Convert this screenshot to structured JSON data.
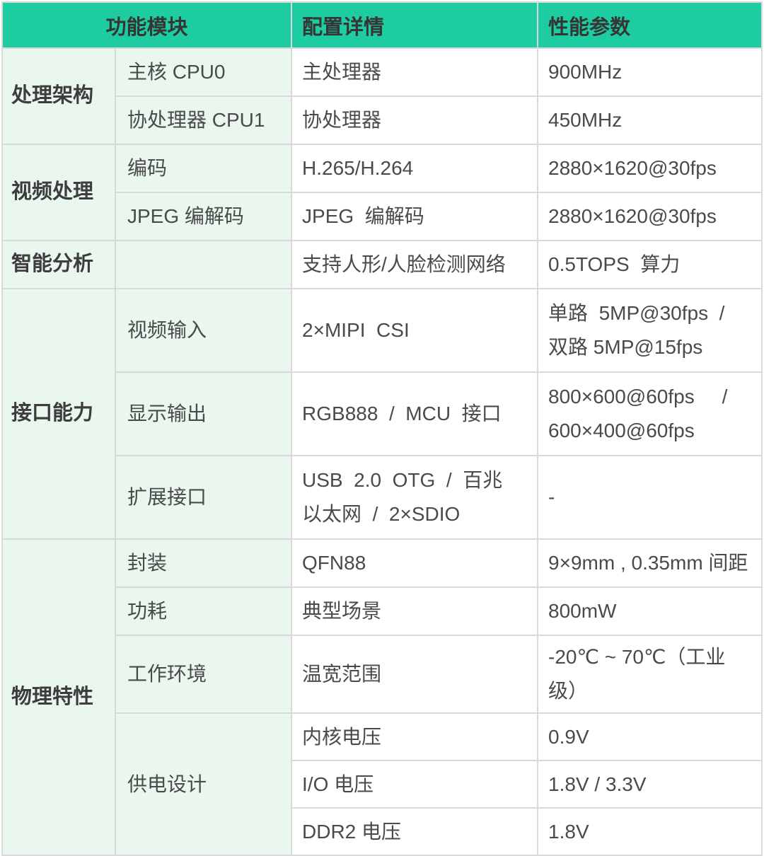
{
  "colors": {
    "header_bg": "#1dcca0",
    "category_bg": "#e9f7ef",
    "cell_bg": "#ffffff",
    "border": "#d9d9d9",
    "header_text": "#353535",
    "body_text": "#4a4a4a"
  },
  "table": {
    "header": {
      "module": "功能模块",
      "config": "配置详情",
      "perf": "性能参数"
    },
    "groups": [
      {
        "name": "处理架构",
        "rows": [
          {
            "item": "主核 CPU0",
            "config": "主处理器",
            "perf": "900MHz"
          },
          {
            "item": "协处理器 CPU1",
            "config": "协处理器",
            "perf": "450MHz"
          }
        ]
      },
      {
        "name": "视频处理",
        "rows": [
          {
            "item": "编码",
            "config": "H.265/H.264",
            "perf": "2880×1620@30fps"
          },
          {
            "item": "JPEG 编解码",
            "config": "JPEG  编解码",
            "perf": "2880×1620@30fps"
          }
        ]
      },
      {
        "name": "智能分析",
        "rows": [
          {
            "item": "",
            "config": "支持人形/人脸检测网络",
            "perf": "0.5TOPS  算力"
          }
        ]
      },
      {
        "name": "接口能力",
        "rows": [
          {
            "item": "视频输入",
            "config": "2×MIPI  CSI",
            "perf": "单路  5MP@30fps  /\n双路 5MP@15fps"
          },
          {
            "item": "显示输出",
            "config": "RGB888  /  MCU  接口",
            "perf": "800×600@60fps     /\n600×400@60fps"
          },
          {
            "item": "扩展接口",
            "config": "USB  2.0  OTG  /  百兆\n以太网  /  2×SDIO",
            "perf": "-"
          }
        ]
      },
      {
        "name": "物理特性",
        "rows": [
          {
            "item": "封装",
            "config": "QFN88",
            "perf": "9×9mm , 0.35mm 间距"
          },
          {
            "item": "功耗",
            "config": "典型场景",
            "perf": "800mW"
          },
          {
            "item": "工作环境",
            "config": "温宽范围",
            "perf": "-20℃ ~ 70℃（工业级）"
          },
          {
            "item": "供电设计",
            "config": "内核电压",
            "perf": "0.9V"
          },
          {
            "item": "",
            "config": "I/O 电压",
            "perf": "1.8V / 3.3V"
          },
          {
            "item": "",
            "config": "DDR2 电压",
            "perf": "1.8V"
          }
        ]
      }
    ]
  }
}
